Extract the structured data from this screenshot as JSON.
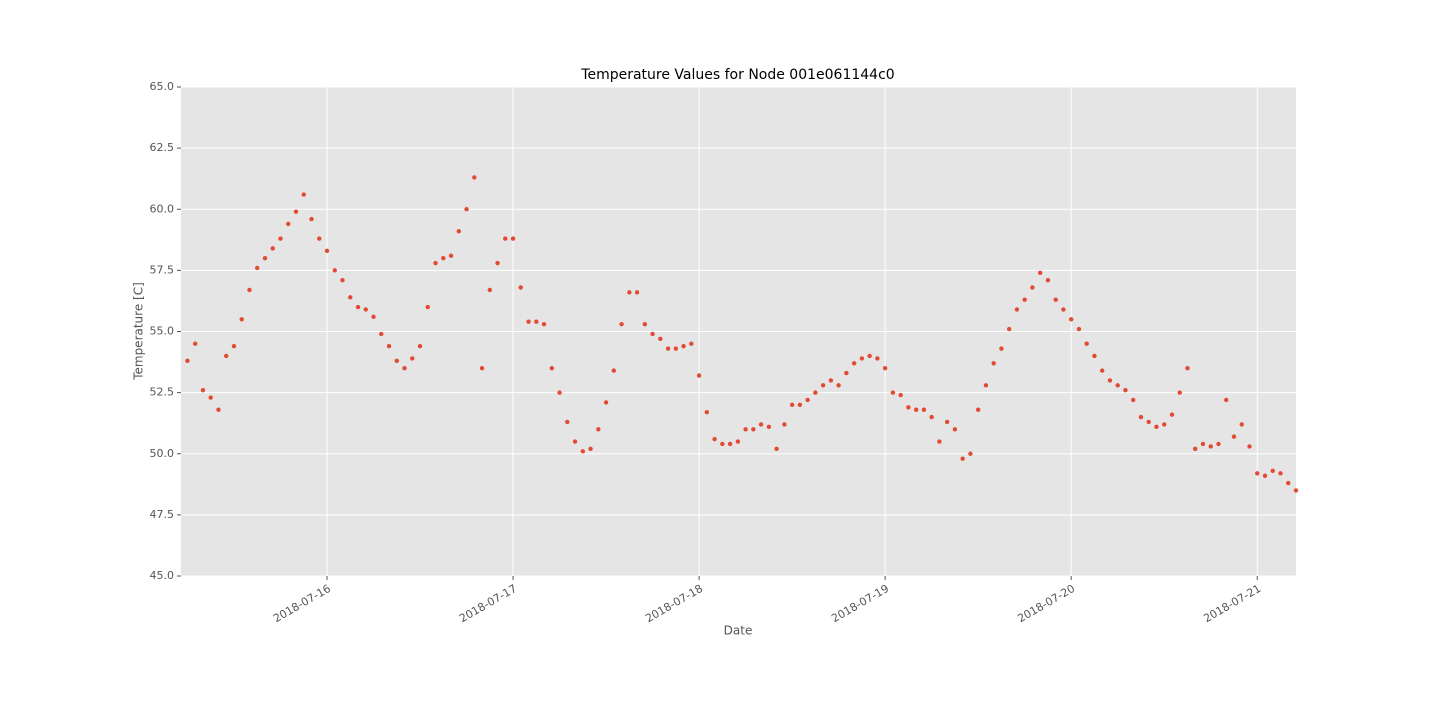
{
  "chart_data": {
    "type": "scatter",
    "title": "Temperature Values for Node 001e061144c0",
    "x_label": "Date",
    "y_label": "Temperature [C]",
    "xlim": [
      "2018-07-15 05:10",
      "2018-07-21 05:00"
    ],
    "xticks": [
      "2018-07-16",
      "2018-07-17",
      "2018-07-18",
      "2018-07-19",
      "2018-07-20",
      "2018-07-21"
    ],
    "ylim": [
      45,
      65
    ],
    "yticks": [
      {
        "value": 45,
        "label": "45.0"
      },
      {
        "value": 47.5,
        "label": "47.5"
      },
      {
        "value": 50,
        "label": "50.0"
      },
      {
        "value": 52.5,
        "label": "52.5"
      },
      {
        "value": 55,
        "label": "55.0"
      },
      {
        "value": 57.5,
        "label": "57.5"
      },
      {
        "value": 60,
        "label": "60.0"
      },
      {
        "value": 62.5,
        "label": "62.5"
      },
      {
        "value": 65,
        "label": "65.0"
      }
    ],
    "grid": true,
    "color": "#e24a33",
    "x": [
      "2018-07-15 06:00",
      "2018-07-15 07:00",
      "2018-07-15 08:00",
      "2018-07-15 09:00",
      "2018-07-15 10:00",
      "2018-07-15 11:00",
      "2018-07-15 12:00",
      "2018-07-15 13:00",
      "2018-07-15 14:00",
      "2018-07-15 15:00",
      "2018-07-15 16:00",
      "2018-07-15 17:00",
      "2018-07-15 18:00",
      "2018-07-15 19:00",
      "2018-07-15 20:00",
      "2018-07-15 21:00",
      "2018-07-15 22:00",
      "2018-07-15 23:00",
      "2018-07-16 00:00",
      "2018-07-16 01:00",
      "2018-07-16 02:00",
      "2018-07-16 03:00",
      "2018-07-16 04:00",
      "2018-07-16 05:00",
      "2018-07-16 06:00",
      "2018-07-16 07:00",
      "2018-07-16 08:00",
      "2018-07-16 09:00",
      "2018-07-16 10:00",
      "2018-07-16 11:00",
      "2018-07-16 12:00",
      "2018-07-16 13:00",
      "2018-07-16 14:00",
      "2018-07-16 15:00",
      "2018-07-16 16:00",
      "2018-07-16 17:00",
      "2018-07-16 18:00",
      "2018-07-16 19:00",
      "2018-07-16 20:00",
      "2018-07-16 21:00",
      "2018-07-16 22:00",
      "2018-07-16 23:00",
      "2018-07-17 00:00",
      "2018-07-17 01:00",
      "2018-07-17 02:00",
      "2018-07-17 03:00",
      "2018-07-17 04:00",
      "2018-07-17 05:00",
      "2018-07-17 06:00",
      "2018-07-17 07:00",
      "2018-07-17 08:00",
      "2018-07-17 09:00",
      "2018-07-17 10:00",
      "2018-07-17 11:00",
      "2018-07-17 12:00",
      "2018-07-17 13:00",
      "2018-07-17 14:00",
      "2018-07-17 15:00",
      "2018-07-17 16:00",
      "2018-07-17 17:00",
      "2018-07-17 18:00",
      "2018-07-17 19:00",
      "2018-07-17 20:00",
      "2018-07-17 21:00",
      "2018-07-17 22:00",
      "2018-07-17 23:00",
      "2018-07-18 00:00",
      "2018-07-18 01:00",
      "2018-07-18 02:00",
      "2018-07-18 03:00",
      "2018-07-18 04:00",
      "2018-07-18 05:00",
      "2018-07-18 06:00",
      "2018-07-18 07:00",
      "2018-07-18 08:00",
      "2018-07-18 09:00",
      "2018-07-18 10:00",
      "2018-07-18 11:00",
      "2018-07-18 12:00",
      "2018-07-18 13:00",
      "2018-07-18 14:00",
      "2018-07-18 15:00",
      "2018-07-18 16:00",
      "2018-07-18 17:00",
      "2018-07-18 18:00",
      "2018-07-18 19:00",
      "2018-07-18 20:00",
      "2018-07-18 21:00",
      "2018-07-18 22:00",
      "2018-07-18 23:00",
      "2018-07-19 00:00",
      "2018-07-19 01:00",
      "2018-07-19 02:00",
      "2018-07-19 03:00",
      "2018-07-19 04:00",
      "2018-07-19 05:00",
      "2018-07-19 06:00",
      "2018-07-19 07:00",
      "2018-07-19 08:00",
      "2018-07-19 09:00",
      "2018-07-19 10:00",
      "2018-07-19 11:00",
      "2018-07-19 12:00",
      "2018-07-19 13:00",
      "2018-07-19 14:00",
      "2018-07-19 15:00",
      "2018-07-19 16:00",
      "2018-07-19 17:00",
      "2018-07-19 18:00",
      "2018-07-19 19:00",
      "2018-07-19 20:00",
      "2018-07-19 21:00",
      "2018-07-19 22:00",
      "2018-07-19 23:00",
      "2018-07-20 00:00",
      "2018-07-20 01:00",
      "2018-07-20 02:00",
      "2018-07-20 03:00",
      "2018-07-20 04:00",
      "2018-07-20 05:00",
      "2018-07-20 06:00",
      "2018-07-20 07:00",
      "2018-07-20 08:00",
      "2018-07-20 09:00",
      "2018-07-20 10:00",
      "2018-07-20 11:00",
      "2018-07-20 12:00",
      "2018-07-20 13:00",
      "2018-07-20 14:00",
      "2018-07-20 15:00",
      "2018-07-20 16:00",
      "2018-07-20 17:00",
      "2018-07-20 18:00",
      "2018-07-20 19:00",
      "2018-07-20 20:00",
      "2018-07-20 21:00",
      "2018-07-20 22:00",
      "2018-07-20 23:00",
      "2018-07-21 00:00",
      "2018-07-21 01:00",
      "2018-07-21 02:00",
      "2018-07-21 03:00",
      "2018-07-21 04:00",
      "2018-07-21 05:00"
    ],
    "values": [
      53.8,
      54.5,
      52.6,
      52.3,
      51.8,
      54,
      54.4,
      55.5,
      56.7,
      57.6,
      58,
      58.4,
      58.8,
      59.4,
      59.9,
      60.6,
      59.6,
      58.8,
      58.3,
      57.5,
      57.1,
      56.4,
      56,
      55.9,
      55.6,
      54.9,
      54.4,
      53.8,
      53.5,
      53.9,
      54.4,
      56,
      57.8,
      58,
      58.1,
      59.1,
      60,
      61.3,
      53.5,
      56.7,
      57.8,
      58.8,
      58.8,
      56.8,
      55.4,
      55.4,
      55.3,
      53.5,
      52.5,
      51.3,
      50.5,
      50.1,
      50.2,
      51,
      52.1,
      53.4,
      55.3,
      56.6,
      56.6,
      55.3,
      54.9,
      54.7,
      54.3,
      54.3,
      54.4,
      54.5,
      53.2,
      51.7,
      50.6,
      50.4,
      50.4,
      50.5,
      51,
      51,
      51.2,
      51.1,
      50.2,
      51.2,
      52,
      52,
      52.2,
      52.5,
      52.8,
      53,
      52.8,
      53.3,
      53.7,
      53.9,
      54,
      53.9,
      53.5,
      52.5,
      52.4,
      51.9,
      51.8,
      51.8,
      51.5,
      50.5,
      51.3,
      51,
      49.8,
      50,
      51.8,
      52.8,
      53.7,
      54.3,
      55.1,
      55.9,
      56.3,
      56.8,
      57.4,
      57.1,
      56.3,
      55.9,
      55.5,
      55.1,
      54.5,
      54,
      53.4,
      53,
      52.8,
      52.6,
      52.2,
      51.5,
      51.3,
      51.1,
      51.2,
      51.6,
      52.5,
      53.5,
      50.2,
      50.4,
      50.3,
      50.4,
      52.2,
      50.7,
      51.2,
      50.3,
      49.2,
      49.1,
      49.3,
      49.2,
      48.8,
      48.5
    ]
  }
}
